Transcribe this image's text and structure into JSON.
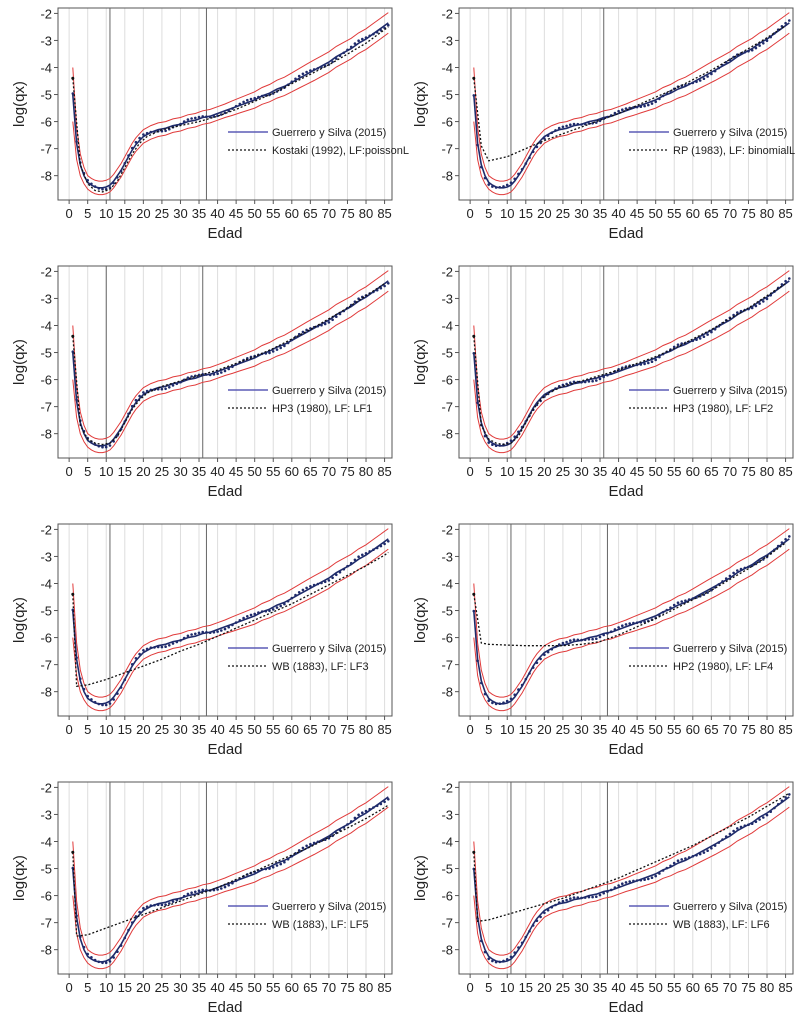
{
  "figure": {
    "xlabel": "Edad",
    "ylabel": "log(qx)",
    "y_ticks": [
      -2,
      -3,
      -4,
      -5,
      -6,
      -7,
      -8
    ],
    "colors": {
      "series_observed": "#1f2b6b",
      "series_model": "#111111",
      "band": "#e03a3a",
      "legend_line": "#5b5bb5",
      "vline": "#666666",
      "grid": "#dddddd"
    }
  },
  "chart_data": [
    {
      "type": "line",
      "title": "",
      "xlabel": "Edad",
      "ylabel": "log(qx)",
      "xlim": [
        -3,
        87
      ],
      "ylim": [
        -8.9,
        -1.8
      ],
      "x_ticks": [
        0,
        5,
        10,
        15,
        20,
        25,
        30,
        35,
        40,
        45,
        50,
        55,
        60,
        65,
        70,
        75,
        80,
        85
      ],
      "x_tick_labels": [
        "0",
        "5",
        "10",
        "15",
        "20",
        "25",
        "30",
        "35",
        "40",
        "45",
        "50",
        "55",
        "60",
        "65",
        "70",
        "75",
        "80",
        "85"
      ],
      "vlines": [
        11,
        37
      ],
      "series": [
        {
          "name": "Guerrero y Silva (2015)",
          "style": "solid",
          "key": "gs"
        },
        {
          "name": "Kostaki (1992), LF:poissonL",
          "style": "dotted",
          "key": "kostaki"
        }
      ],
      "legend_position": "center-right"
    },
    {
      "type": "line",
      "title": "",
      "xlabel": "Edad",
      "ylabel": "log(qx)",
      "xlim": [
        -3,
        87
      ],
      "ylim": [
        -8.9,
        -1.8
      ],
      "x_ticks": [
        0,
        5,
        10,
        15,
        20,
        25,
        30,
        35,
        40,
        45,
        50,
        55,
        60,
        65,
        70,
        75,
        80,
        85
      ],
      "x_tick_labels": [
        "0",
        "5",
        "10",
        "15",
        "20",
        "25",
        "30",
        "35",
        "40",
        "45",
        "50",
        "55",
        "60",
        "65",
        "70",
        "75",
        "80",
        "85"
      ],
      "vlines": [
        11,
        36
      ],
      "series": [
        {
          "name": "Guerrero y Silva (2015)",
          "style": "solid",
          "key": "gs"
        },
        {
          "name": "RP (1983), LF: binomialL",
          "style": "dotted",
          "key": "rp"
        }
      ],
      "legend_position": "center-right"
    },
    {
      "type": "line",
      "title": "",
      "xlabel": "Edad",
      "ylabel": "log(qx)",
      "xlim": [
        -3,
        87
      ],
      "ylim": [
        -8.9,
        -1.8
      ],
      "x_ticks": [
        0,
        5,
        10,
        15,
        20,
        25,
        30,
        35,
        40,
        45,
        50,
        55,
        60,
        65,
        70,
        75,
        80,
        85
      ],
      "x_tick_labels": [
        "0",
        "5",
        "10",
        "15",
        "20",
        "25",
        "30",
        "35",
        "40",
        "45",
        "50",
        "55",
        "60",
        "65",
        "70",
        "75",
        "80",
        "85"
      ],
      "vlines": [
        10,
        36
      ],
      "series": [
        {
          "name": "Guerrero y Silva (2015)",
          "style": "solid",
          "key": "gs"
        },
        {
          "name": "HP3 (1980), LF: LF1",
          "style": "dotted",
          "key": "hp"
        }
      ],
      "legend_position": "center-right"
    },
    {
      "type": "line",
      "title": "",
      "xlabel": "Edad",
      "ylabel": "log(qx)",
      "xlim": [
        -3,
        87
      ],
      "ylim": [
        -8.9,
        -1.8
      ],
      "x_ticks": [
        0,
        5,
        10,
        15,
        20,
        25,
        30,
        35,
        40,
        45,
        50,
        55,
        60,
        65,
        70,
        75,
        80,
        85
      ],
      "x_tick_labels": [
        "0",
        "5",
        "10",
        "15",
        "20",
        "25",
        "30",
        "35",
        "40",
        "45",
        "50",
        "55",
        "60",
        "65",
        "70",
        "75",
        "80",
        "85"
      ],
      "vlines": [
        11,
        36
      ],
      "series": [
        {
          "name": "Guerrero y Silva (2015)",
          "style": "solid",
          "key": "gs"
        },
        {
          "name": "HP3 (1980), LF: LF2",
          "style": "dotted",
          "key": "hp"
        }
      ],
      "legend_position": "center-right"
    },
    {
      "type": "line",
      "title": "",
      "xlabel": "Edad",
      "ylabel": "log(qx)",
      "xlim": [
        -3,
        87
      ],
      "ylim": [
        -8.9,
        -1.8
      ],
      "x_ticks": [
        0,
        5,
        10,
        15,
        20,
        25,
        30,
        35,
        40,
        45,
        50,
        55,
        60,
        65,
        70,
        75,
        80,
        85
      ],
      "x_tick_labels": [
        "0",
        "5",
        "10",
        "15",
        "20",
        "25",
        "30",
        "35",
        "40",
        "45",
        "50",
        "55",
        "60",
        "65",
        "70",
        "75",
        "80",
        "85"
      ],
      "vlines": [
        11,
        37
      ],
      "series": [
        {
          "name": "Guerrero y Silva (2015)",
          "style": "solid",
          "key": "gs"
        },
        {
          "name": "WB (1883), LF: LF3",
          "style": "dotted",
          "key": "wb3"
        }
      ],
      "legend_position": "center-right"
    },
    {
      "type": "line",
      "title": "",
      "xlabel": "Edad",
      "ylabel": "log(qx)",
      "xlim": [
        -3,
        87
      ],
      "ylim": [
        -8.9,
        -1.8
      ],
      "x_ticks": [
        0,
        5,
        10,
        15,
        20,
        25,
        30,
        35,
        40,
        45,
        50,
        55,
        60,
        65,
        70,
        75,
        80,
        85
      ],
      "x_tick_labels": [
        "0",
        "5",
        "10",
        "15",
        "20",
        "25",
        "30",
        "35",
        "40",
        "45",
        "50",
        "55",
        "60",
        "65",
        "70",
        "75",
        "80",
        "85"
      ],
      "vlines": [
        11,
        37
      ],
      "series": [
        {
          "name": "Guerrero y Silva (2015)",
          "style": "solid",
          "key": "gs"
        },
        {
          "name": "HP2 (1980), LF: LF4",
          "style": "dotted",
          "key": "hp2"
        }
      ],
      "legend_position": "center-right"
    },
    {
      "type": "line",
      "title": "",
      "xlabel": "Edad",
      "ylabel": "log(qx)",
      "xlim": [
        -3,
        87
      ],
      "ylim": [
        -8.9,
        -1.8
      ],
      "x_ticks": [
        0,
        5,
        10,
        15,
        20,
        25,
        30,
        35,
        40,
        45,
        50,
        55,
        60,
        65,
        70,
        75,
        80,
        85
      ],
      "x_tick_labels": [
        "0",
        "5",
        "10",
        "15",
        "20",
        "25",
        "30",
        "35",
        "40",
        "45",
        "50",
        "55",
        "60",
        "65",
        "70",
        "75",
        "80",
        "85"
      ],
      "vlines": [
        11,
        37
      ],
      "series": [
        {
          "name": "Guerrero y Silva (2015)",
          "style": "solid",
          "key": "gs"
        },
        {
          "name": "WB (1883), LF: LF5",
          "style": "dotted",
          "key": "wb5"
        }
      ],
      "legend_position": "center-right"
    },
    {
      "type": "line",
      "title": "",
      "xlabel": "Edad",
      "ylabel": "log(qx)",
      "xlim": [
        -3,
        87
      ],
      "ylim": [
        -8.9,
        -1.8
      ],
      "x_ticks": [
        0,
        5,
        10,
        15,
        20,
        25,
        30,
        35,
        40,
        45,
        50,
        55,
        60,
        65,
        70,
        75,
        80,
        85
      ],
      "x_tick_labels": [
        "0",
        "5",
        "10",
        "15",
        "20",
        "25",
        "30",
        "35",
        "40",
        "45",
        "50",
        "55",
        "60",
        "65",
        "70",
        "75",
        "80",
        "85"
      ],
      "vlines": [
        11,
        37
      ],
      "series": [
        {
          "name": "Guerrero y Silva (2015)",
          "style": "solid",
          "key": "gs"
        },
        {
          "name": "WB (1883), LF: LF6",
          "style": "dotted",
          "key": "wb6"
        }
      ],
      "legend_position": "center-right"
    }
  ],
  "curves": {
    "gs": {
      "x": [
        1,
        2,
        3,
        4,
        5,
        6,
        7,
        8,
        9,
        10,
        11,
        12,
        13,
        14,
        15,
        16,
        17,
        18,
        19,
        20,
        22,
        24,
        26,
        28,
        30,
        32,
        34,
        36,
        38,
        40,
        42,
        44,
        46,
        48,
        50,
        52,
        54,
        56,
        58,
        60,
        62,
        64,
        66,
        68,
        70,
        72,
        74,
        76,
        78,
        80,
        82,
        84,
        86
      ],
      "y": [
        -5.0,
        -6.8,
        -7.6,
        -8.0,
        -8.25,
        -8.35,
        -8.42,
        -8.45,
        -8.45,
        -8.42,
        -8.35,
        -8.2,
        -8.0,
        -7.8,
        -7.55,
        -7.3,
        -7.05,
        -6.85,
        -6.7,
        -6.55,
        -6.4,
        -6.3,
        -6.25,
        -6.15,
        -6.1,
        -6.0,
        -5.95,
        -5.85,
        -5.8,
        -5.7,
        -5.6,
        -5.5,
        -5.4,
        -5.3,
        -5.2,
        -5.05,
        -4.95,
        -4.8,
        -4.7,
        -4.55,
        -4.4,
        -4.25,
        -4.1,
        -3.95,
        -3.8,
        -3.6,
        -3.45,
        -3.3,
        -3.1,
        -2.95,
        -2.75,
        -2.55,
        -2.35
      ]
    },
    "band_offset": [
      1.0,
      0.6,
      0.4,
      0.3,
      0.25,
      0.25,
      0.25,
      0.25,
      0.25,
      0.25,
      0.25,
      0.25,
      0.25,
      0.25,
      0.25,
      0.25,
      0.25,
      0.25,
      0.25,
      0.25,
      0.25,
      0.25,
      0.25,
      0.25,
      0.25,
      0.25,
      0.25,
      0.25,
      0.25,
      0.25,
      0.25,
      0.27,
      0.28,
      0.29,
      0.3,
      0.31,
      0.32,
      0.33,
      0.34,
      0.35,
      0.36,
      0.37,
      0.38,
      0.38,
      0.38,
      0.38,
      0.38,
      0.38,
      0.38,
      0.38,
      0.38,
      0.38,
      0.38
    ],
    "kostaki": {
      "x": [
        1,
        3,
        5,
        7,
        9,
        11,
        13,
        15,
        17,
        19,
        21,
        25,
        30,
        35,
        40,
        45,
        50,
        55,
        60,
        65,
        70,
        75,
        80,
        85,
        86
      ],
      "y": [
        -4.4,
        -7.6,
        -8.3,
        -8.55,
        -8.6,
        -8.5,
        -8.2,
        -7.7,
        -7.2,
        -6.8,
        -6.55,
        -6.3,
        -6.15,
        -6.0,
        -5.8,
        -5.55,
        -5.25,
        -4.95,
        -4.6,
        -4.25,
        -3.9,
        -3.5,
        -3.1,
        -2.6,
        -2.5
      ]
    },
    "rp": {
      "x": [
        1,
        3,
        5,
        10,
        15,
        20,
        25,
        30,
        35,
        40,
        45,
        50,
        55,
        60,
        65,
        70,
        75,
        80,
        85
      ],
      "y": [
        -4.4,
        -6.9,
        -7.45,
        -7.3,
        -7.0,
        -6.7,
        -6.45,
        -6.2,
        -5.95,
        -5.7,
        -5.4,
        -5.1,
        -4.8,
        -4.45,
        -4.1,
        -3.7,
        -3.3,
        -2.9,
        -2.45
      ]
    },
    "hp": {
      "x": [
        1,
        3,
        5,
        7,
        9,
        11,
        13,
        15,
        17,
        19,
        21,
        25,
        30,
        35,
        40,
        45,
        50,
        55,
        60,
        65,
        70,
        75,
        80,
        85
      ],
      "y": [
        -4.4,
        -7.7,
        -8.2,
        -8.35,
        -8.4,
        -8.35,
        -8.1,
        -7.6,
        -7.1,
        -6.75,
        -6.5,
        -6.25,
        -6.05,
        -5.85,
        -5.65,
        -5.4,
        -5.15,
        -4.85,
        -4.5,
        -4.15,
        -3.75,
        -3.35,
        -2.9,
        -2.45
      ]
    },
    "wb3": {
      "x": [
        1,
        2,
        5,
        10,
        15,
        20,
        25,
        30,
        35,
        40,
        45,
        50,
        55,
        60,
        65,
        70,
        75,
        80,
        85,
        86
      ],
      "y": [
        -4.4,
        -7.8,
        -7.75,
        -7.55,
        -7.3,
        -7.05,
        -6.8,
        -6.5,
        -6.25,
        -5.95,
        -5.65,
        -5.35,
        -5.05,
        -4.75,
        -4.4,
        -4.05,
        -3.7,
        -3.35,
        -2.95,
        -2.85
      ]
    },
    "hp2": {
      "x": [
        1,
        3,
        5,
        10,
        15,
        20,
        25,
        30,
        35,
        40,
        45,
        50,
        55,
        60,
        65,
        70,
        75,
        80,
        85
      ],
      "y": [
        -4.4,
        -6.2,
        -6.25,
        -6.28,
        -6.3,
        -6.3,
        -6.3,
        -6.25,
        -6.15,
        -5.9,
        -5.6,
        -5.3,
        -4.95,
        -4.6,
        -4.25,
        -3.85,
        -3.45,
        -3.0,
        -2.5
      ]
    },
    "wb5": {
      "x": [
        1,
        2,
        5,
        10,
        15,
        20,
        25,
        30,
        35,
        40,
        45,
        50,
        55,
        60,
        65,
        70,
        75,
        80,
        85,
        86
      ],
      "y": [
        -4.4,
        -7.5,
        -7.45,
        -7.2,
        -6.95,
        -6.7,
        -6.45,
        -6.2,
        -5.95,
        -5.7,
        -5.4,
        -5.1,
        -4.8,
        -4.5,
        -4.2,
        -3.85,
        -3.5,
        -3.15,
        -2.75,
        -2.65
      ]
    },
    "wb6": {
      "x": [
        1,
        2,
        5,
        10,
        15,
        20,
        25,
        30,
        35,
        40,
        45,
        50,
        55,
        60,
        65,
        70,
        75,
        80,
        85,
        86
      ],
      "y": [
        -4.4,
        -6.95,
        -6.9,
        -6.7,
        -6.5,
        -6.3,
        -6.1,
        -5.85,
        -5.6,
        -5.35,
        -5.05,
        -4.75,
        -4.45,
        -4.15,
        -3.8,
        -3.45,
        -3.1,
        -2.7,
        -2.3,
        -2.2
      ]
    }
  }
}
